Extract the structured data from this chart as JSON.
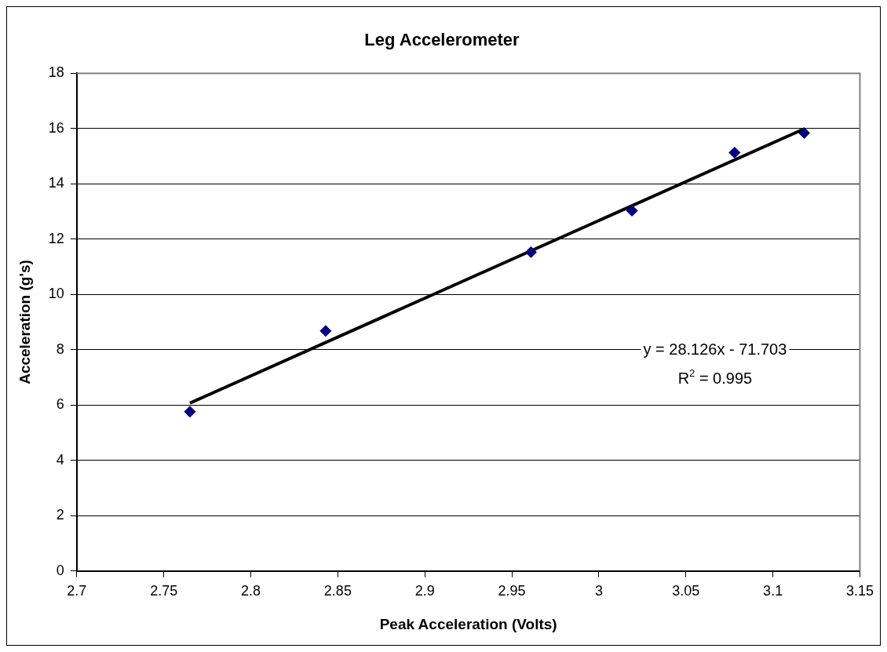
{
  "chart_data": {
    "type": "scatter",
    "title": "Leg Accelerometer",
    "xlabel": "Peak Acceleration (Volts)",
    "ylabel": "Acceleration (g's)",
    "x": [
      2.765,
      2.843,
      2.961,
      3.019,
      3.078,
      3.118
    ],
    "series": [
      {
        "color": "#000080",
        "marker": "diamond",
        "values": [
          5.76,
          8.68,
          11.53,
          13.03,
          15.13,
          15.84
        ]
      },
      {
        "type": "line",
        "color": "#000000",
        "marker": "none",
        "line_style": "solid",
        "x": [
          2.765,
          3.118
        ],
        "values": [
          6.07,
          15.99
        ]
      }
    ],
    "xlim": [
      2.7,
      3.15
    ],
    "xticks": [
      2.7,
      2.75,
      2.8,
      2.85,
      2.9,
      2.95,
      3,
      3.05,
      3.1,
      3.15
    ],
    "ylim": [
      0,
      18
    ],
    "yticks": [
      0,
      2,
      4,
      6,
      8,
      10,
      12,
      14,
      16,
      18
    ],
    "grid": "y",
    "legend": false,
    "annotations": [
      "y = 28.126x - 71.703",
      "R$^{2}$ = 0.995"
    ]
  }
}
